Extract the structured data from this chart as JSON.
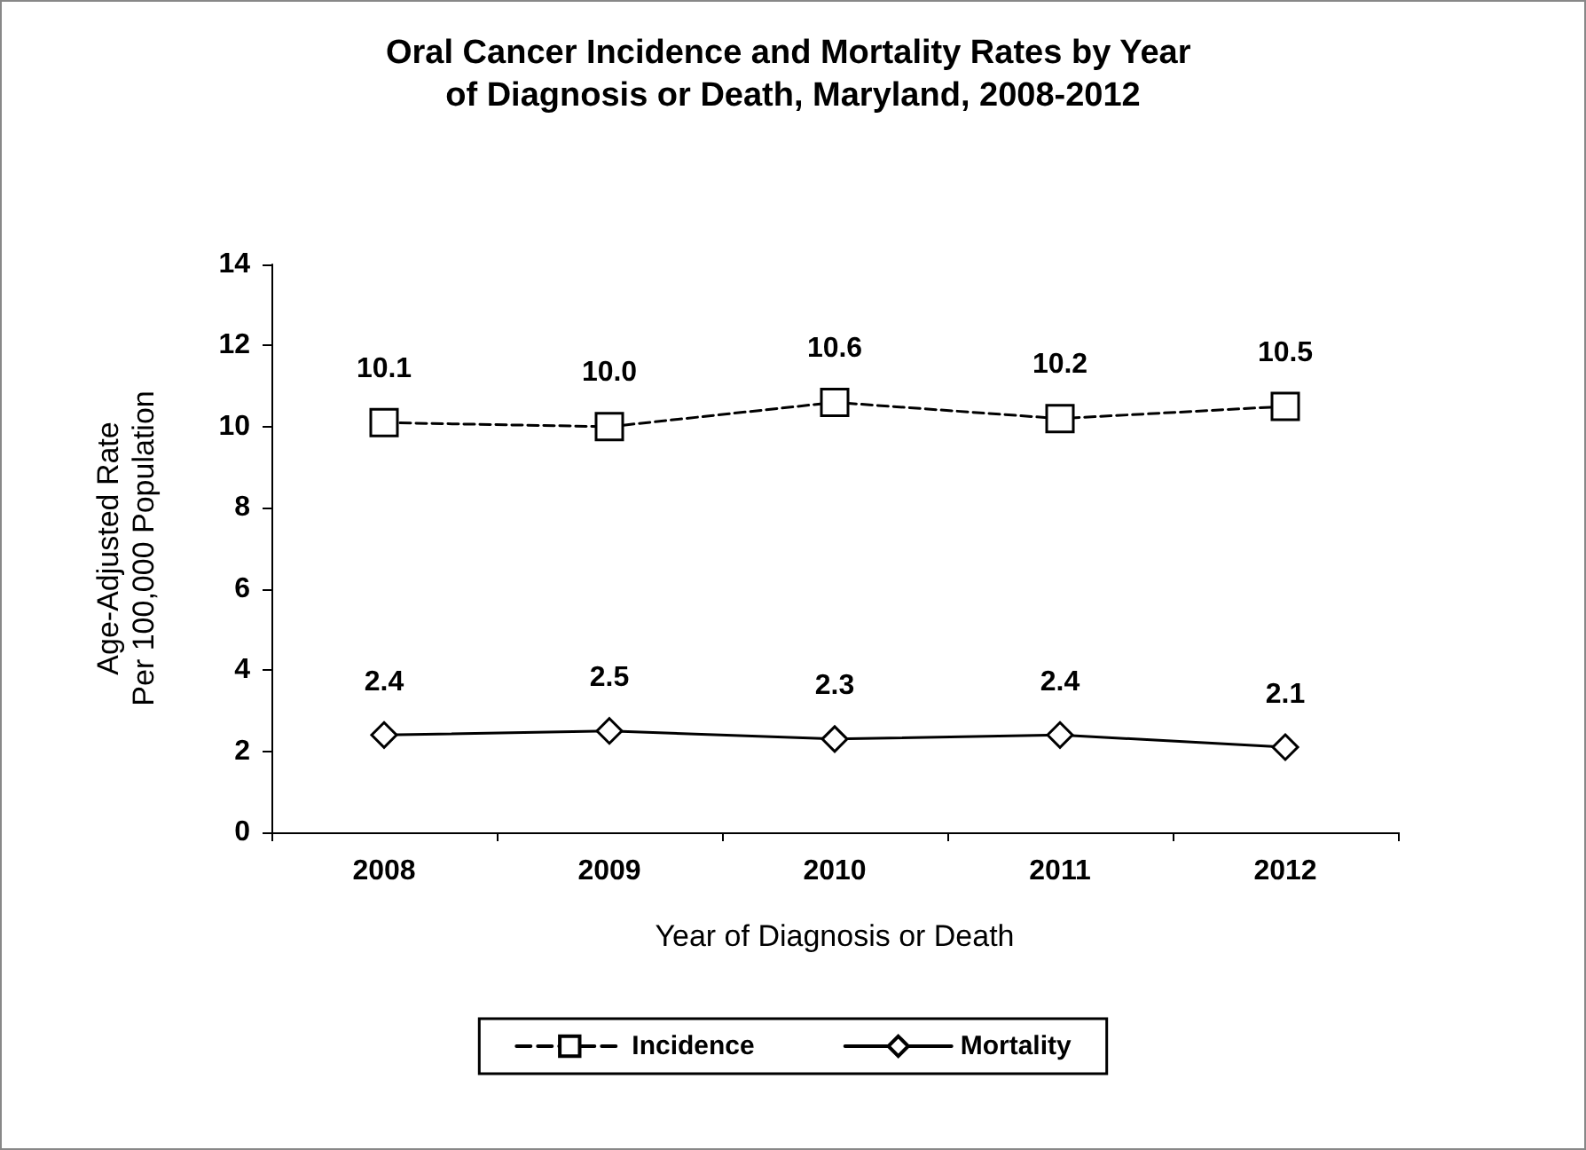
{
  "chart_data": {
    "type": "line",
    "title": "Oral Cancer Incidence and Mortality Rates by Year of Diagnosis or Death, Maryland, 2008-2012",
    "xlabel": "Year of Diagnosis or Death",
    "ylabel": "Age-Adjusted Rate Per 100,000 Population",
    "categories": [
      "2008",
      "2009",
      "2010",
      "2011",
      "2012"
    ],
    "series": [
      {
        "name": "Incidence",
        "color": "#000000",
        "values": [
          10.1,
          10.0,
          10.6,
          10.2,
          10.5
        ],
        "value_labels": [
          "10.1",
          "10.0",
          "10.6",
          "10.2",
          "10.5"
        ],
        "marker": "square",
        "line_style": "dashed"
      },
      {
        "name": "Mortality",
        "color": "#000000",
        "values": [
          2.4,
          2.5,
          2.3,
          2.4,
          2.1
        ],
        "value_labels": [
          "2.4",
          "2.5",
          "2.3",
          "2.4",
          "2.1"
        ],
        "marker": "diamond",
        "line_style": "solid"
      }
    ],
    "ylim": [
      0,
      14
    ],
    "yticks": [
      0,
      2,
      4,
      6,
      8,
      10,
      12,
      14
    ],
    "grid": false,
    "legend": "bottom"
  }
}
